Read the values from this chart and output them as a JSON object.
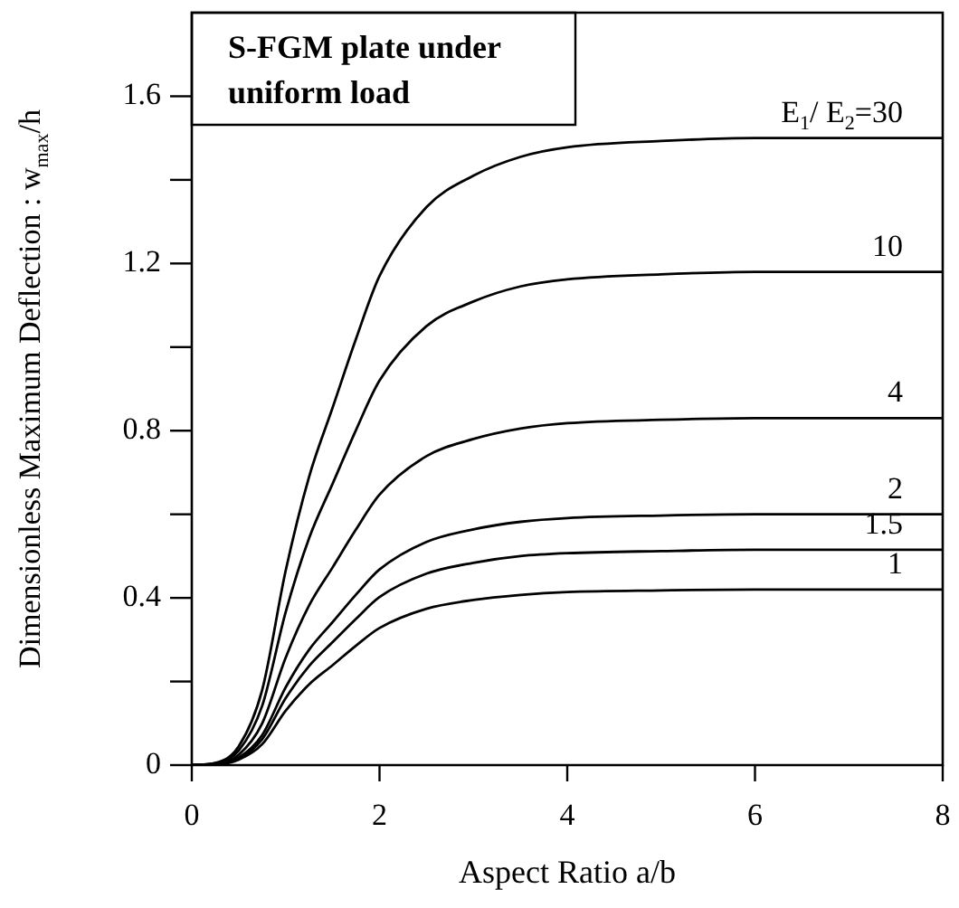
{
  "chart_data": {
    "type": "line",
    "xlabel": "Aspect Ratio a/b",
    "ylabel": "Dimensionless Maximum Deflection : w$_{max}$/h",
    "annotations": [
      "S-FGM plate under uniform load"
    ],
    "x": [
      0,
      0.25,
      0.5,
      0.75,
      1,
      1.25,
      1.5,
      1.75,
      2,
      2.5,
      3,
      3.5,
      4,
      5,
      6,
      8
    ],
    "series": [
      {
        "name": "E$_{1}$/ E$_{2}$=30",
        "color": "#000000",
        "values": [
          0,
          0.005,
          0.045,
          0.18,
          0.465,
          0.69,
          0.855,
          1.02,
          1.17,
          1.335,
          1.41,
          1.455,
          1.478,
          1.493,
          1.5,
          1.5
        ]
      },
      {
        "name": "10",
        "color": "#000000",
        "values": [
          0,
          0.004,
          0.035,
          0.142,
          0.366,
          0.543,
          0.673,
          0.802,
          0.92,
          1.05,
          1.109,
          1.145,
          1.162,
          1.174,
          1.18,
          1.18
        ]
      },
      {
        "name": "4",
        "color": "#000000",
        "values": [
          0,
          0.002,
          0.025,
          0.1,
          0.257,
          0.382,
          0.473,
          0.564,
          0.647,
          0.739,
          0.78,
          0.805,
          0.818,
          0.826,
          0.83,
          0.83
        ]
      },
      {
        "name": "2",
        "color": "#000000",
        "values": [
          0,
          0.002,
          0.018,
          0.072,
          0.186,
          0.276,
          0.342,
          0.408,
          0.468,
          0.534,
          0.564,
          0.582,
          0.591,
          0.597,
          0.6,
          0.6
        ]
      },
      {
        "name": "1.5",
        "color": "#000000",
        "values": [
          0,
          0.002,
          0.015,
          0.062,
          0.16,
          0.237,
          0.294,
          0.35,
          0.402,
          0.458,
          0.484,
          0.5,
          0.507,
          0.512,
          0.515,
          0.515
        ]
      },
      {
        "name": "1",
        "color": "#000000",
        "values": [
          0,
          0.001,
          0.013,
          0.05,
          0.13,
          0.193,
          0.239,
          0.286,
          0.328,
          0.374,
          0.395,
          0.407,
          0.414,
          0.418,
          0.42,
          0.42
        ]
      }
    ],
    "xlim": [
      0,
      8
    ],
    "xticks": [
      0,
      2,
      4,
      6,
      8
    ],
    "ylim": [
      0,
      1.8
    ],
    "yticks": [
      0,
      {
        "value": 0.2,
        "label": null
      },
      0.4,
      {
        "value": 0.6,
        "label": null
      },
      0.8,
      {
        "value": 1.0,
        "label": null
      },
      1.2,
      {
        "value": 1.4,
        "label": null
      },
      1.6
    ],
    "grid": false,
    "legend": false,
    "marker": "none",
    "line_style": "solid"
  }
}
